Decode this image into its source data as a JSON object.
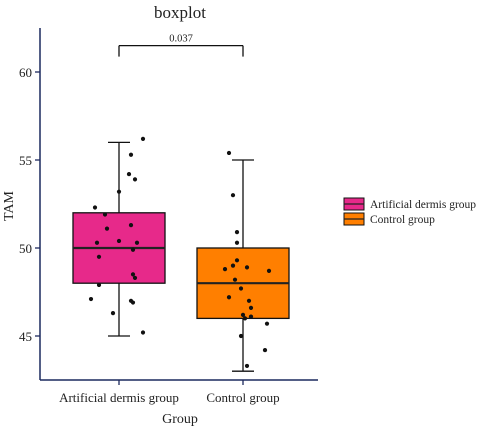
{
  "chart_data": {
    "type": "boxplot",
    "title": "boxplot",
    "xlabel": "Group",
    "ylabel": "TAM",
    "ylim": [
      42.5,
      62.5
    ],
    "yticks": [
      45,
      50,
      55,
      60
    ],
    "ytick_labels": [
      "45",
      "50",
      "55",
      "60"
    ],
    "categories": [
      "Artificial dermis group",
      "Control group"
    ],
    "legend": {
      "position": "right",
      "entries": [
        "Artificial dermis group",
        "Control group"
      ]
    },
    "colors": {
      "Artificial dermis group": "#e7298a",
      "Control group": "#ff7f00"
    },
    "significance": {
      "label": "0.037",
      "between": [
        "Artificial dermis group",
        "Control group"
      ],
      "y": 61.5
    },
    "boxes": [
      {
        "group": "Artificial dermis group",
        "min": 45,
        "q1": 48,
        "median": 50,
        "q3": 52,
        "max": 56
      },
      {
        "group": "Control group",
        "min": 43,
        "q1": 46,
        "median": 48,
        "q3": 50,
        "max": 55
      }
    ],
    "points": [
      {
        "group": "Artificial dermis group",
        "values": [
          56.2,
          55.3,
          54.2,
          53.9,
          53.2,
          52.3,
          51.9,
          51.3,
          51.1,
          50.4,
          50.3,
          50.3,
          49.9,
          49.5,
          48.5,
          48.3,
          47.9,
          47.1,
          47.0,
          46.9,
          46.3,
          45.2
        ]
      },
      {
        "group": "Control group",
        "values": [
          55.4,
          53.0,
          50.9,
          50.3,
          49.3,
          49.0,
          48.9,
          48.8,
          48.7,
          48.2,
          47.7,
          47.2,
          47.0,
          46.6,
          46.2,
          46.1,
          46.0,
          45.7,
          45.0,
          44.2,
          43.3
        ]
      }
    ]
  }
}
